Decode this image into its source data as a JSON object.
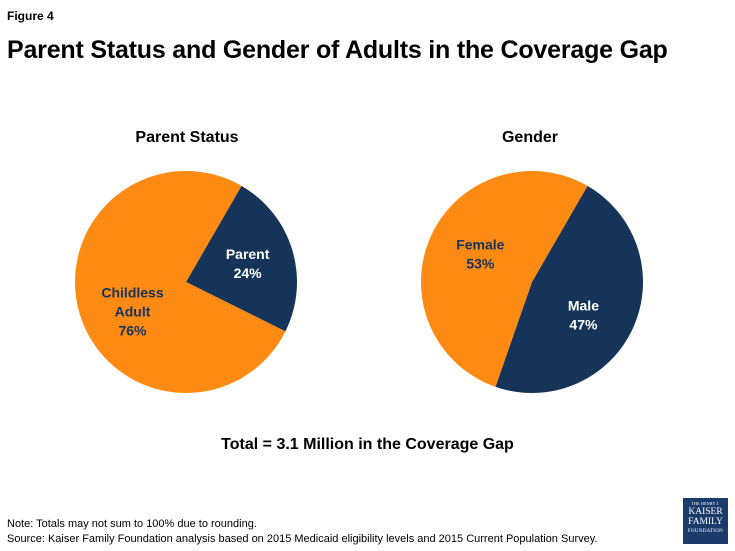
{
  "figure_label": "Figure 4",
  "title": "Parent Status and Gender of Adults in the Coverage Gap",
  "colors": {
    "orange": "#fd8a13",
    "navy": "#16345a"
  },
  "chart_data": [
    {
      "type": "pie",
      "title": "Parent Status",
      "slices": [
        {
          "label_lines": [
            "Parent",
            "24%"
          ],
          "value": 24,
          "color": "#16345a",
          "text_color": "#ffffff"
        },
        {
          "label_lines": [
            "Childless",
            "Adult",
            "76%"
          ],
          "value": 76,
          "color": "#fd8a13",
          "text_color": "#16345a"
        }
      ]
    },
    {
      "type": "pie",
      "title": "Gender",
      "slices": [
        {
          "label_lines": [
            "Male",
            "47%"
          ],
          "value": 47,
          "color": "#16345a",
          "text_color": "#ffffff"
        },
        {
          "label_lines": [
            "Female",
            "53%"
          ],
          "value": 53,
          "color": "#fd8a13",
          "text_color": "#16345a"
        }
      ]
    }
  ],
  "total_text": "Total = 3.1 Million in the Coverage Gap",
  "notes": {
    "note": "Note: Totals may not sum to 100% due to rounding.",
    "source": "Source: Kaiser Family Foundation analysis based on 2015 Medicaid eligibility levels and 2015 Current Population Survey."
  },
  "logo": {
    "line1": "THE HENRY J.",
    "line2": "KAISER",
    "line3": "FAMILY",
    "line4": "FOUNDATION"
  }
}
